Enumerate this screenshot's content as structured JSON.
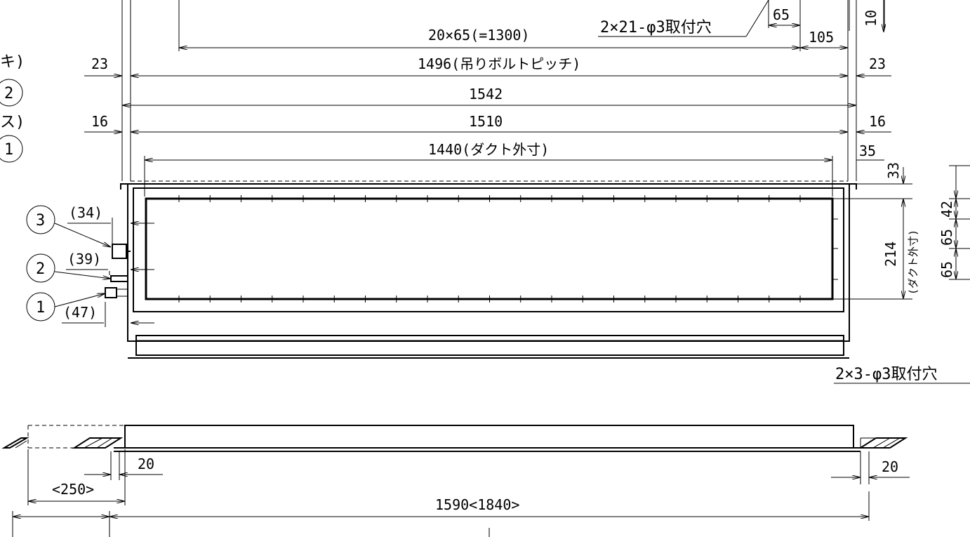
{
  "title_block": {
    "mount_holes_top": "2×21-φ3取付穴",
    "mount_holes_right": "2×3-φ3取付穴"
  },
  "dimensions": {
    "d65": "65",
    "d10": "10",
    "pitch_series": "20×65(=1300)",
    "d105": "105",
    "d23_left": "23",
    "bolt_pitch": "1496(吊りボルトピッチ)",
    "d23_right": "23",
    "d1542": "1542",
    "d16_left": "16",
    "d1510": "1510",
    "d16_right": "16",
    "duct_width": "1440(ダクト外寸)",
    "d35": "35",
    "d33": "33",
    "duct_height": "214",
    "duct_height_note": "(ダクト外寸)",
    "d65a": "65",
    "d65b": "65",
    "d42": "42",
    "d34": "(34)",
    "d39": "(39)",
    "d47": "(47)",
    "d20_left": "20",
    "d20_right": "20",
    "d250": "<250>",
    "d1590": "1590<1840>"
  },
  "callouts": {
    "c1": "1",
    "c2": "2",
    "c3": "3",
    "left_c1": "1",
    "left_c2": "2",
    "partial_ki": "キ)",
    "partial_su": "ス)"
  }
}
